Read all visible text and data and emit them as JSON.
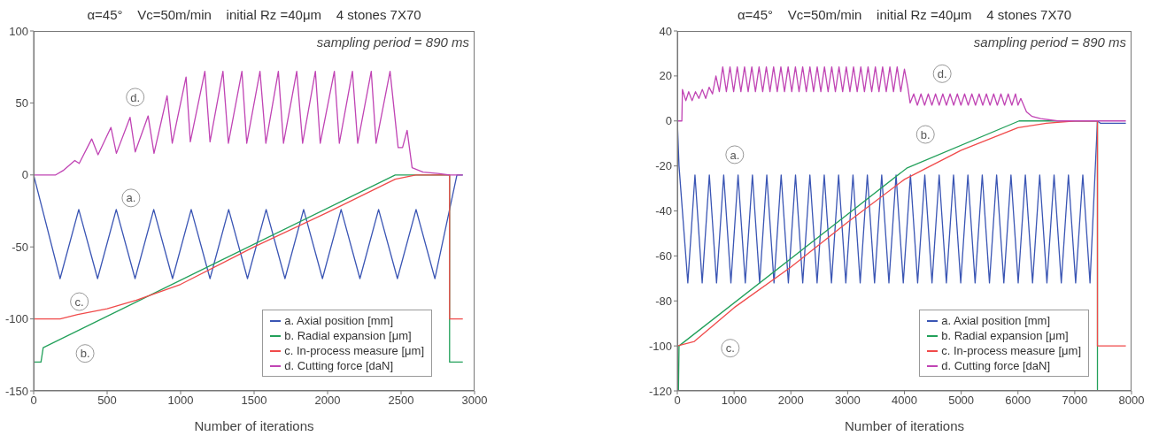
{
  "chart_data": [
    {
      "type": "line",
      "title": "α=45°    Vc=50m/min    initial Rz =40μm    4 stones 7X70",
      "xlabel": "Number of iterations",
      "xlim": [
        0,
        3000
      ],
      "xticks": [
        0,
        500,
        1000,
        1500,
        2000,
        2500,
        3000
      ],
      "ylim": [
        -150,
        100
      ],
      "yticks": [
        -150,
        -100,
        -50,
        0,
        50,
        100
      ],
      "grid": false,
      "legend": "bottom right",
      "marker": "none",
      "line_style": "solid",
      "annotations": [
        "sampling period = 890 ms",
        {
          "text": "a.",
          "x": 662,
          "y": -16
        },
        {
          "text": "b.",
          "x": 350,
          "y": -124
        },
        {
          "text": "c.",
          "x": 311,
          "y": -88
        },
        {
          "text": "d.",
          "x": 691,
          "y": 54
        }
      ],
      "series": [
        {
          "name": "a. Axial position [mm]",
          "color": "#3a55b4",
          "x": [
            0,
            180,
            307,
            435,
            562,
            690,
            817,
            945,
            1072,
            1200,
            1327,
            1455,
            1582,
            1710,
            1837,
            1965,
            2092,
            2220,
            2347,
            2475,
            2602,
            2730,
            2880,
            2920
          ],
          "values": [
            0,
            -72,
            -24,
            -72,
            -24,
            -72,
            -24,
            -72,
            -24,
            -72,
            -24,
            -72,
            -24,
            -72,
            -24,
            -72,
            -24,
            -72,
            -24,
            -72,
            -24,
            -72,
            0,
            0
          ]
        },
        {
          "name": "b. Radial expansion [μm]",
          "color": "#22a05a",
          "x": [
            0,
            50,
            65,
            2460,
            2830,
            2830,
            2920
          ],
          "values": [
            -130,
            -130,
            -120,
            0,
            0,
            -130,
            -130
          ]
        },
        {
          "name": "c. In-process measure [μm]",
          "color": "#f04a4a",
          "x": [
            0,
            180,
            300,
            500,
            700,
            1000,
            1500,
            2000,
            2460,
            2600,
            2830,
            2830,
            2920
          ],
          "values": [
            -100,
            -100,
            -97,
            -93,
            -87,
            -76,
            -50,
            -26,
            -3,
            0,
            0,
            -100,
            -100
          ]
        },
        {
          "name": "d. Cutting force [daN]",
          "color": "#c044b4",
          "x": [
            0,
            150,
            200,
            280,
            310,
            395,
            438,
            526,
            563,
            656,
            691,
            779,
            819,
            908,
            943,
            1037,
            1066,
            1165,
            1200,
            1288,
            1325,
            1417,
            1450,
            1540,
            1580,
            1665,
            1700,
            1790,
            1830,
            1917,
            1950,
            2046,
            2080,
            2169,
            2205,
            2297,
            2330,
            2425,
            2480,
            2510,
            2541,
            2575,
            2650,
            2750,
            2830,
            2920
          ],
          "values": [
            0,
            0,
            3,
            10,
            8,
            25,
            14,
            33,
            15,
            40,
            16,
            41,
            15,
            55,
            22,
            68,
            23,
            72,
            23,
            72,
            22,
            72,
            22,
            72,
            22,
            72,
            22,
            72,
            22,
            72,
            22,
            72,
            22,
            72,
            22,
            72,
            22,
            72,
            19,
            19,
            31,
            5,
            2,
            1,
            0,
            0
          ]
        }
      ]
    },
    {
      "type": "line",
      "title": "α=45°    Vc=50m/min    initial Rz =40μm    4 stones 7X70",
      "xlabel": "Number of iterations",
      "xlim": [
        0,
        8000
      ],
      "xticks": [
        0,
        1000,
        2000,
        3000,
        4000,
        5000,
        6000,
        7000,
        8000
      ],
      "ylim": [
        -120,
        40
      ],
      "yticks": [
        -120,
        -100,
        -80,
        -60,
        -40,
        -20,
        0,
        20,
        40
      ],
      "grid": false,
      "legend": "bottom right",
      "marker": "none",
      "line_style": "solid",
      "annotations": [
        "sampling period = 890 ms",
        {
          "text": "a.",
          "x": 1011,
          "y": -15
        },
        {
          "text": "b.",
          "x": 4370,
          "y": -6
        },
        {
          "text": "c.",
          "x": 933,
          "y": -101
        },
        {
          "text": "d.",
          "x": 4665,
          "y": 21
        }
      ],
      "series": [
        {
          "name": "a. Axial position [mm]",
          "color": "#3a55b4",
          "x": [
            0,
            30,
            185,
            311,
            438,
            564,
            691,
            817,
            944,
            1070,
            1197,
            1323,
            1450,
            1576,
            1703,
            1829,
            1956,
            2082,
            2209,
            2335,
            2462,
            2588,
            2715,
            2841,
            2968,
            3094,
            3221,
            3347,
            3474,
            3600,
            3727,
            3853,
            3980,
            4106,
            4233,
            4359,
            4486,
            4612,
            4739,
            4865,
            4992,
            5118,
            5245,
            5371,
            5498,
            5624,
            5751,
            5877,
            6004,
            6130,
            6257,
            6383,
            6510,
            6636,
            6763,
            6889,
            7016,
            7142,
            7269,
            7400,
            7450,
            7900
          ],
          "values": [
            0,
            -20,
            -72,
            -24,
            -72,
            -24,
            -72,
            -24,
            -72,
            -24,
            -72,
            -24,
            -72,
            -24,
            -72,
            -24,
            -72,
            -24,
            -72,
            -24,
            -72,
            -24,
            -72,
            -24,
            -72,
            -24,
            -72,
            -24,
            -72,
            -24,
            -72,
            -24,
            -72,
            -24,
            -72,
            -24,
            -72,
            -24,
            -72,
            -24,
            -72,
            -24,
            -72,
            -24,
            -72,
            -24,
            -72,
            -24,
            -72,
            -24,
            -72,
            -24,
            -72,
            -24,
            -72,
            -24,
            -72,
            -24,
            -72,
            0,
            -1,
            -1
          ]
        },
        {
          "name": "b. Radial expansion [μm]",
          "color": "#22a05a",
          "x": [
            0,
            20,
            30,
            4040,
            6020,
            7400,
            7400,
            7900
          ],
          "values": [
            -120,
            -120,
            -100,
            -21,
            0,
            0,
            -120,
            -120
          ]
        },
        {
          "name": "c. In-process measure [μm]",
          "color": "#f04a4a",
          "x": [
            0,
            300,
            1000,
            2000,
            3000,
            4000,
            5000,
            6000,
            6500,
            7000,
            7400,
            7400,
            7900
          ],
          "values": [
            -100,
            -98,
            -83,
            -65,
            -45,
            -26,
            -13,
            -3,
            -1,
            0,
            0,
            -100,
            -100
          ]
        },
        {
          "name": "d. Cutting force [daN]",
          "color": "#c044b4",
          "x": [
            0,
            80,
            90,
            150,
            200,
            260,
            320,
            380,
            440,
            500,
            560,
            620,
            680,
            740,
            800,
            864,
            928,
            992,
            1056,
            1120,
            1184,
            1248,
            1312,
            1376,
            1440,
            1504,
            1568,
            1632,
            1696,
            1760,
            1824,
            1888,
            1952,
            2016,
            2080,
            2144,
            2208,
            2272,
            2336,
            2400,
            2464,
            2528,
            2592,
            2656,
            2720,
            2784,
            2848,
            2912,
            2976,
            3040,
            3104,
            3168,
            3232,
            3296,
            3360,
            3424,
            3488,
            3552,
            3616,
            3680,
            3744,
            3808,
            3872,
            3936,
            4000,
            4060,
            4100,
            4164,
            4228,
            4292,
            4356,
            4420,
            4484,
            4548,
            4612,
            4676,
            4740,
            4804,
            4868,
            4932,
            4996,
            5060,
            5124,
            5188,
            5252,
            5316,
            5380,
            5444,
            5508,
            5572,
            5636,
            5700,
            5764,
            5828,
            5892,
            5956,
            6000,
            6050,
            6150,
            6250,
            6400,
            6700,
            7400,
            7900
          ],
          "values": [
            0,
            0,
            14,
            9,
            13,
            9,
            13,
            10,
            14,
            10,
            15,
            12,
            20,
            13,
            24,
            13,
            24,
            13,
            24,
            13,
            24,
            13,
            24,
            13,
            24,
            13,
            24,
            13,
            24,
            13,
            24,
            13,
            24,
            13,
            24,
            13,
            24,
            13,
            24,
            13,
            24,
            13,
            24,
            13,
            24,
            13,
            24,
            13,
            24,
            13,
            24,
            13,
            24,
            13,
            24,
            13,
            24,
            13,
            24,
            13,
            24,
            13,
            24,
            13,
            23,
            15,
            8,
            12,
            7,
            12,
            7,
            12,
            7,
            12,
            7,
            12,
            7,
            12,
            7,
            12,
            7,
            12,
            7,
            12,
            7,
            12,
            7,
            12,
            7,
            12,
            7,
            12,
            7,
            12,
            7,
            12,
            7,
            10,
            4,
            2,
            1,
            0,
            0,
            0
          ]
        }
      ]
    }
  ]
}
